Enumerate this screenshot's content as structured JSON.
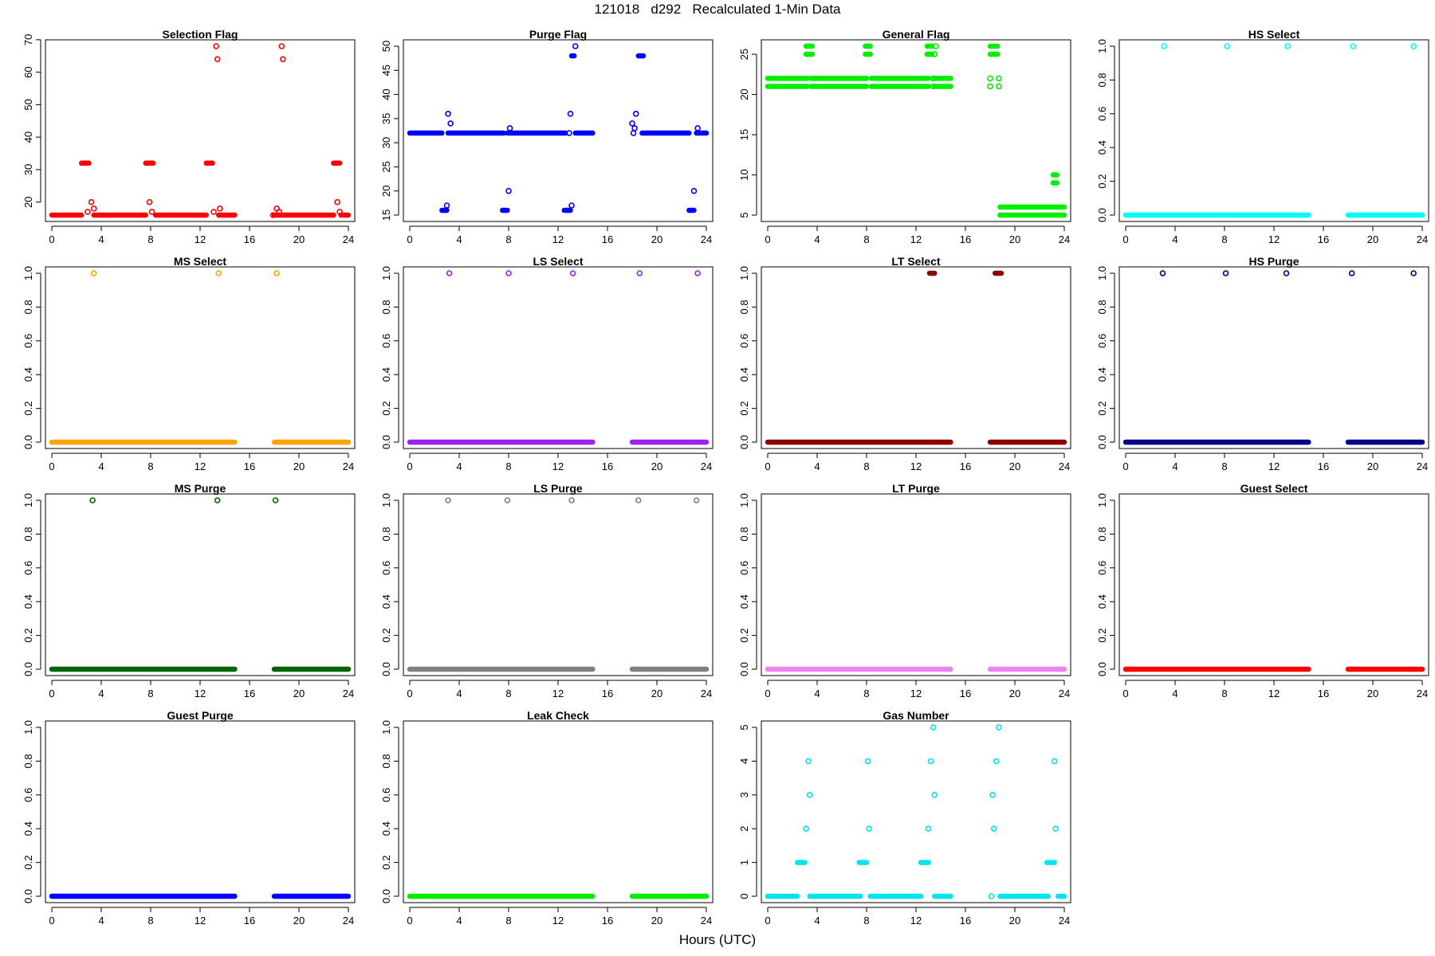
{
  "figure": {
    "title": "121018   d292   Recalculated 1-Min Data",
    "xlabel": "Hours (UTC)"
  },
  "chart_data": [
    {
      "type": "scatter",
      "title": "Selection Flag",
      "color": "#ff0000",
      "xlim": [
        0,
        24
      ],
      "ylim": [
        16,
        68
      ],
      "xticks": [
        "0",
        "4",
        "8",
        "12",
        "16",
        "20",
        "24"
      ],
      "yticks": [
        "20",
        "30",
        "40",
        "50",
        "60",
        "70"
      ],
      "segments": [
        {
          "x": [
            0,
            2.4
          ],
          "y": 16
        },
        {
          "x": [
            2.4,
            3.0
          ],
          "y": 32
        },
        {
          "x": [
            3.4,
            7.6
          ],
          "y": 16
        },
        {
          "x": [
            7.6,
            8.2
          ],
          "y": 32
        },
        {
          "x": [
            8.4,
            12.5
          ],
          "y": 16
        },
        {
          "x": [
            12.5,
            13.0
          ],
          "y": 32
        },
        {
          "x": [
            13.5,
            14.8
          ],
          "y": 16
        },
        {
          "x": [
            18.0,
            22.8
          ],
          "y": 16
        },
        {
          "x": [
            22.8,
            23.3
          ],
          "y": 32
        },
        {
          "x": [
            23.4,
            24
          ],
          "y": 16
        }
      ],
      "points": [
        [
          2.9,
          17
        ],
        [
          3.2,
          20
        ],
        [
          3.4,
          18
        ],
        [
          13.3,
          68
        ],
        [
          13.4,
          64
        ],
        [
          13.6,
          18
        ],
        [
          13.1,
          17
        ],
        [
          7.9,
          20
        ],
        [
          8.1,
          17
        ],
        [
          18.2,
          18
        ],
        [
          18.4,
          17
        ],
        [
          18.6,
          68
        ],
        [
          18.7,
          64
        ],
        [
          17.9,
          16
        ],
        [
          23.1,
          20
        ],
        [
          23.3,
          17
        ]
      ]
    },
    {
      "type": "scatter",
      "title": "Purge Flag",
      "color": "#0000ff",
      "xlim": [
        0,
        24
      ],
      "ylim": [
        15,
        50
      ],
      "xticks": [
        "0",
        "4",
        "8",
        "12",
        "16",
        "20",
        "24"
      ],
      "yticks": [
        "15",
        "20",
        "25",
        "30",
        "35",
        "40",
        "45",
        "50"
      ],
      "segments": [
        {
          "x": [
            0,
            2.6
          ],
          "y": 32
        },
        {
          "x": [
            3.1,
            7.6
          ],
          "y": 32
        },
        {
          "x": [
            7.9,
            12.6
          ],
          "y": 32
        },
        {
          "x": [
            13.4,
            14.8
          ],
          "y": 32
        },
        {
          "x": [
            18.8,
            22.6
          ],
          "y": 32
        },
        {
          "x": [
            23.2,
            24
          ],
          "y": 32
        },
        {
          "x": [
            2.6,
            3.0
          ],
          "y": 16
        },
        {
          "x": [
            7.5,
            7.9
          ],
          "y": 16
        },
        {
          "x": [
            12.5,
            13.0
          ],
          "y": 16
        },
        {
          "x": [
            22.6,
            23.0
          ],
          "y": 16
        },
        {
          "x": [
            13.1,
            13.3
          ],
          "y": 48
        },
        {
          "x": [
            18.5,
            18.9
          ],
          "y": 48
        }
      ],
      "points": [
        [
          3.1,
          36
        ],
        [
          3.3,
          34
        ],
        [
          3.0,
          17
        ],
        [
          8.1,
          33
        ],
        [
          8.0,
          20
        ],
        [
          13.0,
          36
        ],
        [
          13.1,
          17
        ],
        [
          13.4,
          50
        ],
        [
          12.9,
          32
        ],
        [
          18.0,
          34
        ],
        [
          18.2,
          33
        ],
        [
          18.3,
          36
        ],
        [
          18.1,
          32
        ],
        [
          23.0,
          20
        ],
        [
          23.3,
          33
        ]
      ]
    },
    {
      "type": "scatter",
      "title": "General Flag",
      "color": "#00ee00",
      "xlim": [
        0,
        24
      ],
      "ylim": [
        5,
        26
      ],
      "xticks": [
        "0",
        "4",
        "8",
        "12",
        "16",
        "20",
        "24"
      ],
      "yticks": [
        "5",
        "10",
        "15",
        "20",
        "25"
      ],
      "segments": [
        {
          "x": [
            0,
            3.2
          ],
          "y": 21
        },
        {
          "x": [
            0,
            3.2
          ],
          "y": 22
        },
        {
          "x": [
            3.5,
            8.0
          ],
          "y": 21
        },
        {
          "x": [
            3.5,
            8.0
          ],
          "y": 22
        },
        {
          "x": [
            8.4,
            13.0
          ],
          "y": 21
        },
        {
          "x": [
            8.4,
            13.0
          ],
          "y": 22
        },
        {
          "x": [
            13.5,
            14.8
          ],
          "y": 21
        },
        {
          "x": [
            13.5,
            14.8
          ],
          "y": 22
        },
        {
          "x": [
            3.1,
            3.6
          ],
          "y": 25
        },
        {
          "x": [
            3.1,
            3.6
          ],
          "y": 26
        },
        {
          "x": [
            7.9,
            8.3
          ],
          "y": 25
        },
        {
          "x": [
            7.9,
            8.3
          ],
          "y": 26
        },
        {
          "x": [
            12.9,
            13.3
          ],
          "y": 25
        },
        {
          "x": [
            12.9,
            13.3
          ],
          "y": 26
        },
        {
          "x": [
            18.0,
            18.6
          ],
          "y": 25
        },
        {
          "x": [
            18.0,
            18.6
          ],
          "y": 26
        },
        {
          "x": [
            18.8,
            23.5
          ],
          "y": 5
        },
        {
          "x": [
            18.8,
            23.5
          ],
          "y": 6
        },
        {
          "x": [
            23.5,
            24
          ],
          "y": 5
        },
        {
          "x": [
            23.5,
            24
          ],
          "y": 6
        },
        {
          "x": [
            23.1,
            23.4
          ],
          "y": 9
        },
        {
          "x": [
            23.1,
            23.4
          ],
          "y": 10
        }
      ],
      "points": [
        [
          13.5,
          25
        ],
        [
          13.6,
          26
        ],
        [
          13.4,
          21
        ],
        [
          13.4,
          22
        ],
        [
          18.0,
          21
        ],
        [
          18.0,
          22
        ],
        [
          18.7,
          21
        ],
        [
          18.7,
          22
        ]
      ]
    },
    {
      "type": "scatter",
      "title": "HS Select",
      "color": "#00ffff",
      "xlim": [
        0,
        24
      ],
      "ylim": [
        0,
        1
      ],
      "xticks": [
        "0",
        "4",
        "8",
        "12",
        "16",
        "20",
        "24"
      ],
      "yticks": [
        "0.0",
        "0.2",
        "0.4",
        "0.6",
        "0.8",
        "1.0"
      ],
      "segments": [
        {
          "x": [
            0,
            14.8
          ],
          "y": 0
        },
        {
          "x": [
            18.0,
            24
          ],
          "y": 0
        }
      ],
      "points": [
        [
          3.1,
          1
        ],
        [
          8.2,
          1
        ],
        [
          13.1,
          1
        ],
        [
          18.4,
          1
        ],
        [
          23.3,
          1
        ]
      ]
    },
    {
      "type": "scatter",
      "title": "MS Select",
      "color": "#ffa500",
      "xlim": [
        0,
        24
      ],
      "ylim": [
        0,
        1
      ],
      "xticks": [
        "0",
        "4",
        "8",
        "12",
        "16",
        "20",
        "24"
      ],
      "yticks": [
        "0.0",
        "0.2",
        "0.4",
        "0.6",
        "0.8",
        "1.0"
      ],
      "segments": [
        {
          "x": [
            0,
            14.8
          ],
          "y": 0
        },
        {
          "x": [
            18.0,
            24
          ],
          "y": 0
        }
      ],
      "points": [
        [
          3.4,
          1
        ],
        [
          13.5,
          1
        ],
        [
          18.2,
          1
        ]
      ]
    },
    {
      "type": "scatter",
      "title": "LS Select",
      "color": "#a020f0",
      "xlim": [
        0,
        24
      ],
      "ylim": [
        0,
        1
      ],
      "xticks": [
        "0",
        "4",
        "8",
        "12",
        "16",
        "20",
        "24"
      ],
      "yticks": [
        "0.0",
        "0.2",
        "0.4",
        "0.6",
        "0.8",
        "1.0"
      ],
      "segments": [
        {
          "x": [
            0,
            14.8
          ],
          "y": 0
        },
        {
          "x": [
            18.0,
            24
          ],
          "y": 0
        }
      ],
      "points": [
        [
          3.2,
          1
        ],
        [
          8.0,
          1
        ],
        [
          13.2,
          1
        ],
        [
          18.6,
          1
        ],
        [
          23.3,
          1
        ]
      ]
    },
    {
      "type": "scatter",
      "title": "LT Select",
      "color": "#8b0000",
      "xlim": [
        0,
        24
      ],
      "ylim": [
        0,
        1
      ],
      "xticks": [
        "0",
        "4",
        "8",
        "12",
        "16",
        "20",
        "24"
      ],
      "yticks": [
        "0.0",
        "0.2",
        "0.4",
        "0.6",
        "0.8",
        "1.0"
      ],
      "segments": [
        {
          "x": [
            0,
            14.8
          ],
          "y": 0
        },
        {
          "x": [
            18.0,
            24
          ],
          "y": 0
        },
        {
          "x": [
            13.1,
            13.5
          ],
          "y": 1
        },
        {
          "x": [
            18.4,
            18.9
          ],
          "y": 1
        }
      ],
      "points": []
    },
    {
      "type": "scatter",
      "title": "HS Purge",
      "color": "#00008b",
      "xlim": [
        0,
        24
      ],
      "ylim": [
        0,
        1
      ],
      "xticks": [
        "0",
        "4",
        "8",
        "12",
        "16",
        "20",
        "24"
      ],
      "yticks": [
        "0.0",
        "0.2",
        "0.4",
        "0.6",
        "0.8",
        "1.0"
      ],
      "segments": [
        {
          "x": [
            0,
            14.8
          ],
          "y": 0
        },
        {
          "x": [
            18.0,
            24
          ],
          "y": 0
        }
      ],
      "points": [
        [
          3.0,
          1
        ],
        [
          8.1,
          1
        ],
        [
          13.0,
          1
        ],
        [
          18.3,
          1
        ],
        [
          23.3,
          1
        ]
      ]
    },
    {
      "type": "scatter",
      "title": "MS Purge",
      "color": "#006400",
      "xlim": [
        0,
        24
      ],
      "ylim": [
        0,
        1
      ],
      "xticks": [
        "0",
        "4",
        "8",
        "12",
        "16",
        "20",
        "24"
      ],
      "yticks": [
        "0.0",
        "0.2",
        "0.4",
        "0.6",
        "0.8",
        "1.0"
      ],
      "segments": [
        {
          "x": [
            0,
            14.8
          ],
          "y": 0
        },
        {
          "x": [
            18.0,
            24
          ],
          "y": 0
        }
      ],
      "points": [
        [
          3.3,
          1
        ],
        [
          13.4,
          1
        ],
        [
          18.1,
          1
        ]
      ]
    },
    {
      "type": "scatter",
      "title": "LS Purge",
      "color": "#808080",
      "xlim": [
        0,
        24
      ],
      "ylim": [
        0,
        1
      ],
      "xticks": [
        "0",
        "4",
        "8",
        "12",
        "16",
        "20",
        "24"
      ],
      "yticks": [
        "0.0",
        "0.2",
        "0.4",
        "0.6",
        "0.8",
        "1.0"
      ],
      "segments": [
        {
          "x": [
            0,
            14.8
          ],
          "y": 0
        },
        {
          "x": [
            18.0,
            24
          ],
          "y": 0
        }
      ],
      "points": [
        [
          3.1,
          1
        ],
        [
          7.9,
          1
        ],
        [
          13.1,
          1
        ],
        [
          18.5,
          1
        ],
        [
          23.2,
          1
        ]
      ]
    },
    {
      "type": "scatter",
      "title": "LT Purge",
      "color": "#ee82ee",
      "xlim": [
        0,
        24
      ],
      "ylim": [
        0,
        1
      ],
      "xticks": [
        "0",
        "4",
        "8",
        "12",
        "16",
        "20",
        "24"
      ],
      "yticks": [
        "0.0",
        "0.2",
        "0.4",
        "0.6",
        "0.8",
        "1.0"
      ],
      "segments": [
        {
          "x": [
            0,
            14.8
          ],
          "y": 0
        },
        {
          "x": [
            18.0,
            24
          ],
          "y": 0
        }
      ],
      "points": []
    },
    {
      "type": "scatter",
      "title": "Guest Select",
      "color": "#ff0000",
      "xlim": [
        0,
        24
      ],
      "ylim": [
        0,
        1
      ],
      "xticks": [
        "0",
        "4",
        "8",
        "12",
        "16",
        "20",
        "24"
      ],
      "yticks": [
        "0.0",
        "0.2",
        "0.4",
        "0.6",
        "0.8",
        "1.0"
      ],
      "segments": [
        {
          "x": [
            0,
            14.8
          ],
          "y": 0
        },
        {
          "x": [
            18.0,
            24
          ],
          "y": 0
        }
      ],
      "points": []
    },
    {
      "type": "scatter",
      "title": "Guest Purge",
      "color": "#0000ff",
      "xlim": [
        0,
        24
      ],
      "ylim": [
        0,
        1
      ],
      "xticks": [
        "0",
        "4",
        "8",
        "12",
        "16",
        "20",
        "24"
      ],
      "yticks": [
        "0.0",
        "0.2",
        "0.4",
        "0.6",
        "0.8",
        "1.0"
      ],
      "segments": [
        {
          "x": [
            0,
            14.8
          ],
          "y": 0
        },
        {
          "x": [
            18.0,
            24
          ],
          "y": 0
        }
      ],
      "points": []
    },
    {
      "type": "scatter",
      "title": "Leak Check",
      "color": "#00ee00",
      "xlim": [
        0,
        24
      ],
      "ylim": [
        0,
        1
      ],
      "xticks": [
        "0",
        "4",
        "8",
        "12",
        "16",
        "20",
        "24"
      ],
      "yticks": [
        "0.0",
        "0.2",
        "0.4",
        "0.6",
        "0.8",
        "1.0"
      ],
      "segments": [
        {
          "x": [
            0,
            14.8
          ],
          "y": 0
        },
        {
          "x": [
            18.0,
            24
          ],
          "y": 0
        }
      ],
      "points": []
    },
    {
      "type": "scatter",
      "title": "Gas Number",
      "color": "#00e5ee",
      "xlim": [
        0,
        24
      ],
      "ylim": [
        0,
        5
      ],
      "xticks": [
        "0",
        "4",
        "8",
        "12",
        "16",
        "20",
        "24"
      ],
      "yticks": [
        "0",
        "1",
        "2",
        "3",
        "4",
        "5"
      ],
      "segments": [
        {
          "x": [
            0,
            2.4
          ],
          "y": 0
        },
        {
          "x": [
            3.4,
            7.5
          ],
          "y": 0
        },
        {
          "x": [
            8.3,
            12.4
          ],
          "y": 0
        },
        {
          "x": [
            13.5,
            14.8
          ],
          "y": 0
        },
        {
          "x": [
            18.8,
            22.7
          ],
          "y": 0
        },
        {
          "x": [
            23.5,
            24
          ],
          "y": 0
        },
        {
          "x": [
            2.4,
            3.0
          ],
          "y": 1
        },
        {
          "x": [
            7.4,
            8.0
          ],
          "y": 1
        },
        {
          "x": [
            12.4,
            13.0
          ],
          "y": 1
        },
        {
          "x": [
            22.6,
            23.2
          ],
          "y": 1
        }
      ],
      "points": [
        [
          3.1,
          2
        ],
        [
          3.4,
          3
        ],
        [
          3.3,
          4
        ],
        [
          8.2,
          2
        ],
        [
          8.1,
          4
        ],
        [
          13.0,
          2
        ],
        [
          13.5,
          3
        ],
        [
          13.2,
          4
        ],
        [
          13.4,
          5
        ],
        [
          18.1,
          0
        ],
        [
          18.2,
          3
        ],
        [
          18.3,
          2
        ],
        [
          18.5,
          4
        ],
        [
          18.7,
          5
        ],
        [
          23.3,
          2
        ],
        [
          23.2,
          4
        ]
      ]
    }
  ]
}
